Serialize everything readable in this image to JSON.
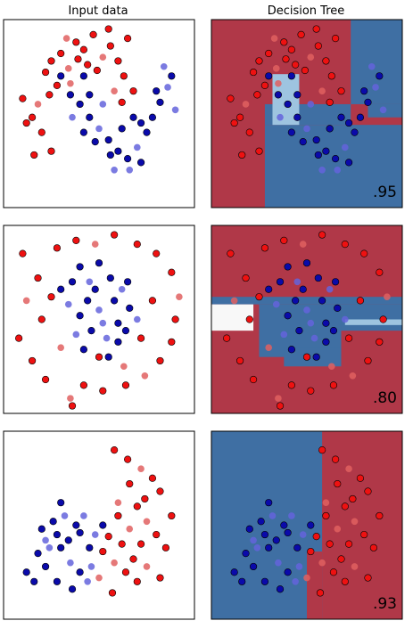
{
  "columns": [
    "Input data",
    "Decision Tree"
  ],
  "colors": {
    "red_point": "#ee1111",
    "red_point_test": "#e06060",
    "blue_point": "#0a0aaa",
    "blue_point_test": "#6464dc",
    "red_region": "#b03848",
    "blue_region": "#3f6fa3",
    "light_blue_region": "#9ec4e0",
    "white_region": "#f8f8f8"
  },
  "chart_data": [
    {
      "type": "scatter",
      "title": "Input data",
      "dataset": "moons",
      "xlim": [
        0,
        100
      ],
      "ylim": [
        0,
        100
      ],
      "grid": false,
      "points": [
        [
          22,
          72,
          "r",
          0
        ],
        [
          25,
          78,
          "r",
          0
        ],
        [
          30,
          82,
          "r",
          0
        ],
        [
          34,
          74,
          "r",
          1
        ],
        [
          38,
          88,
          "r",
          0
        ],
        [
          42,
          84,
          "r",
          0
        ],
        [
          47,
          92,
          "r",
          0
        ],
        [
          52,
          80,
          "r",
          1
        ],
        [
          56,
          86,
          "r",
          0
        ],
        [
          60,
          78,
          "r",
          0
        ],
        [
          63,
          70,
          "r",
          0
        ],
        [
          68,
          62,
          "r",
          0
        ],
        [
          18,
          55,
          "r",
          1
        ],
        [
          15,
          48,
          "r",
          0
        ],
        [
          24,
          60,
          "r",
          0
        ],
        [
          28,
          65,
          "r",
          0
        ],
        [
          10,
          58,
          "r",
          0
        ],
        [
          12,
          45,
          "r",
          0
        ],
        [
          20,
          40,
          "r",
          0
        ],
        [
          35,
          66,
          "r",
          1
        ],
        [
          55,
          95,
          "r",
          0
        ],
        [
          44,
          76,
          "r",
          0
        ],
        [
          58,
          62,
          "r",
          1
        ],
        [
          62,
          56,
          "r",
          0
        ],
        [
          65,
          90,
          "r",
          0
        ],
        [
          25,
          30,
          "r",
          0
        ],
        [
          33,
          90,
          "r",
          1
        ],
        [
          39,
          79,
          "r",
          0
        ],
        [
          49,
          73,
          "r",
          0
        ],
        [
          16,
          28,
          "r",
          0
        ],
        [
          30,
          70,
          "b",
          0
        ],
        [
          35,
          60,
          "b",
          0
        ],
        [
          40,
          55,
          "b",
          0
        ],
        [
          45,
          48,
          "b",
          0
        ],
        [
          50,
          42,
          "b",
          1
        ],
        [
          55,
          36,
          "b",
          0
        ],
        [
          60,
          30,
          "b",
          0
        ],
        [
          65,
          26,
          "b",
          0
        ],
        [
          70,
          32,
          "b",
          1
        ],
        [
          75,
          40,
          "b",
          0
        ],
        [
          78,
          48,
          "b",
          0
        ],
        [
          82,
          56,
          "b",
          0
        ],
        [
          86,
          64,
          "b",
          1
        ],
        [
          88,
          70,
          "b",
          0
        ],
        [
          36,
          48,
          "b",
          1
        ],
        [
          42,
          40,
          "b",
          0
        ],
        [
          48,
          35,
          "b",
          0
        ],
        [
          56,
          28,
          "b",
          0
        ],
        [
          66,
          20,
          "b",
          1
        ],
        [
          72,
          24,
          "b",
          0
        ],
        [
          45,
          60,
          "b",
          0
        ],
        [
          52,
          55,
          "b",
          1
        ],
        [
          80,
          62,
          "b",
          0
        ],
        [
          84,
          75,
          "b",
          1
        ],
        [
          72,
          45,
          "b",
          0
        ],
        [
          62,
          42,
          "b",
          0
        ],
        [
          42,
          70,
          "b",
          0
        ],
        [
          58,
          20,
          "b",
          1
        ],
        [
          68,
          48,
          "b",
          0
        ],
        [
          90,
          52,
          "b",
          1
        ]
      ]
    },
    {
      "type": "heatmap",
      "title": "Decision Tree",
      "dataset": "moons",
      "xlim": [
        0,
        100
      ],
      "ylim": [
        0,
        100
      ],
      "score": ".95",
      "regions": [
        {
          "x": [
            0,
            100
          ],
          "y": [
            0,
            100
          ],
          "class": "red"
        },
        {
          "x": [
            73,
            100
          ],
          "y": [
            55,
            100
          ],
          "class": "blue"
        },
        {
          "x": [
            28,
            100
          ],
          "y": [
            0,
            44
          ],
          "class": "blue"
        },
        {
          "x": [
            28,
            73
          ],
          "y": [
            44,
            55
          ],
          "class": "blue"
        },
        {
          "x": [
            32,
            46
          ],
          "y": [
            44,
            71
          ],
          "class": "light_blue"
        },
        {
          "x": [
            82,
            100
          ],
          "y": [
            48,
            55
          ],
          "class": "blue"
        }
      ]
    },
    {
      "type": "scatter",
      "title": "Input data",
      "dataset": "circles",
      "xlim": [
        0,
        100
      ],
      "ylim": [
        0,
        100
      ],
      "grid": false,
      "points": [
        [
          10,
          85,
          "r",
          0
        ],
        [
          18,
          72,
          "r",
          0
        ],
        [
          12,
          60,
          "r",
          1
        ],
        [
          8,
          40,
          "r",
          0
        ],
        [
          15,
          28,
          "r",
          0
        ],
        [
          22,
          18,
          "r",
          0
        ],
        [
          30,
          35,
          "r",
          1
        ],
        [
          28,
          88,
          "r",
          0
        ],
        [
          38,
          92,
          "r",
          0
        ],
        [
          48,
          90,
          "r",
          1
        ],
        [
          58,
          95,
          "r",
          0
        ],
        [
          70,
          90,
          "r",
          0
        ],
        [
          80,
          85,
          "r",
          0
        ],
        [
          88,
          75,
          "r",
          0
        ],
        [
          92,
          62,
          "r",
          1
        ],
        [
          90,
          50,
          "r",
          0
        ],
        [
          88,
          38,
          "r",
          0
        ],
        [
          82,
          28,
          "r",
          0
        ],
        [
          74,
          20,
          "r",
          1
        ],
        [
          64,
          15,
          "r",
          0
        ],
        [
          52,
          12,
          "r",
          0
        ],
        [
          42,
          15,
          "r",
          0
        ],
        [
          35,
          8,
          "r",
          1
        ],
        [
          36,
          4,
          "r",
          0
        ],
        [
          20,
          50,
          "r",
          0
        ],
        [
          25,
          62,
          "r",
          0
        ],
        [
          50,
          30,
          "r",
          0
        ],
        [
          63,
          25,
          "r",
          1
        ],
        [
          72,
          40,
          "r",
          0
        ],
        [
          78,
          60,
          "r",
          0
        ],
        [
          40,
          78,
          "b",
          0
        ],
        [
          45,
          70,
          "b",
          1
        ],
        [
          50,
          80,
          "b",
          0
        ],
        [
          56,
          72,
          "b",
          0
        ],
        [
          62,
          66,
          "b",
          1
        ],
        [
          66,
          56,
          "b",
          0
        ],
        [
          60,
          48,
          "b",
          0
        ],
        [
          54,
          40,
          "b",
          1
        ],
        [
          46,
          44,
          "b",
          0
        ],
        [
          40,
          52,
          "b",
          0
        ],
        [
          34,
          58,
          "b",
          1
        ],
        [
          30,
          66,
          "b",
          0
        ],
        [
          44,
          60,
          "b",
          0
        ],
        [
          50,
          55,
          "b",
          1
        ],
        [
          58,
          60,
          "b",
          0
        ],
        [
          65,
          70,
          "b",
          0
        ],
        [
          38,
          42,
          "b",
          1
        ],
        [
          55,
          30,
          "b",
          0
        ],
        [
          48,
          66,
          "b",
          0
        ],
        [
          70,
          50,
          "b",
          1
        ],
        [
          36,
          70,
          "b",
          0
        ],
        [
          60,
          38,
          "b",
          0
        ],
        [
          52,
          48,
          "b",
          1
        ],
        [
          42,
          34,
          "b",
          0
        ],
        [
          64,
          44,
          "b",
          0
        ]
      ]
    },
    {
      "type": "heatmap",
      "title": "Decision Tree",
      "dataset": "circles",
      "xlim": [
        0,
        100
      ],
      "ylim": [
        0,
        100
      ],
      "score": ".80",
      "regions": [
        {
          "x": [
            0,
            100
          ],
          "y": [
            0,
            100
          ],
          "class": "red"
        },
        {
          "x": [
            0,
            100
          ],
          "y": [
            58,
            62
          ],
          "class": "blue"
        },
        {
          "x": [
            0,
            22
          ],
          "y": [
            44,
            58
          ],
          "class": "white"
        },
        {
          "x": [
            25,
            68
          ],
          "y": [
            30,
            58
          ],
          "class": "blue"
        },
        {
          "x": [
            38,
            68
          ],
          "y": [
            25,
            35
          ],
          "class": "blue"
        },
        {
          "x": [
            68,
            100
          ],
          "y": [
            44,
            58
          ],
          "class": "blue"
        },
        {
          "x": [
            70,
            100
          ],
          "y": [
            47,
            50
          ],
          "class": "light_blue"
        }
      ]
    },
    {
      "type": "scatter",
      "title": "Input data",
      "dataset": "linearly separable",
      "xlim": [
        0,
        100
      ],
      "ylim": [
        0,
        100
      ],
      "grid": false,
      "points": [
        [
          58,
          90,
          "r",
          0
        ],
        [
          65,
          85,
          "r",
          0
        ],
        [
          72,
          80,
          "r",
          1
        ],
        [
          78,
          75,
          "r",
          0
        ],
        [
          82,
          68,
          "r",
          0
        ],
        [
          70,
          60,
          "r",
          0
        ],
        [
          75,
          52,
          "r",
          1
        ],
        [
          80,
          45,
          "r",
          0
        ],
        [
          85,
          38,
          "r",
          0
        ],
        [
          72,
          40,
          "r",
          0
        ],
        [
          66,
          48,
          "r",
          1
        ],
        [
          60,
          55,
          "r",
          0
        ],
        [
          62,
          40,
          "r",
          0
        ],
        [
          68,
          32,
          "r",
          0
        ],
        [
          75,
          28,
          "r",
          1
        ],
        [
          82,
          22,
          "r",
          0
        ],
        [
          70,
          20,
          "r",
          0
        ],
        [
          64,
          25,
          "r",
          0
        ],
        [
          58,
          30,
          "r",
          1
        ],
        [
          55,
          44,
          "r",
          0
        ],
        [
          88,
          55,
          "r",
          0
        ],
        [
          60,
          62,
          "r",
          1
        ],
        [
          66,
          72,
          "r",
          0
        ],
        [
          74,
          64,
          "r",
          0
        ],
        [
          52,
          36,
          "r",
          0
        ],
        [
          50,
          22,
          "r",
          1
        ],
        [
          57,
          14,
          "r",
          0
        ],
        [
          12,
          25,
          "b",
          0
        ],
        [
          18,
          35,
          "b",
          0
        ],
        [
          22,
          42,
          "b",
          1
        ],
        [
          28,
          45,
          "b",
          0
        ],
        [
          30,
          38,
          "b",
          0
        ],
        [
          35,
          30,
          "b",
          1
        ],
        [
          40,
          25,
          "b",
          0
        ],
        [
          45,
          38,
          "b",
          0
        ],
        [
          48,
          45,
          "b",
          1
        ],
        [
          52,
          50,
          "b",
          0
        ],
        [
          38,
          50,
          "b",
          0
        ],
        [
          32,
          55,
          "b",
          1
        ],
        [
          26,
          52,
          "b",
          0
        ],
        [
          20,
          48,
          "b",
          0
        ],
        [
          44,
          20,
          "b",
          1
        ],
        [
          36,
          16,
          "b",
          0
        ],
        [
          28,
          20,
          "b",
          0
        ],
        [
          42,
          55,
          "b",
          1
        ],
        [
          30,
          62,
          "b",
          0
        ],
        [
          34,
          42,
          "b",
          0
        ],
        [
          24,
          38,
          "b",
          1
        ],
        [
          16,
          20,
          "b",
          0
        ],
        [
          40,
          46,
          "b",
          0
        ],
        [
          46,
          28,
          "b",
          1
        ],
        [
          22,
          28,
          "b",
          0
        ]
      ]
    },
    {
      "type": "heatmap",
      "title": "Decision Tree",
      "dataset": "linearly separable",
      "xlim": [
        0,
        100
      ],
      "ylim": [
        0,
        100
      ],
      "score": ".93",
      "regions": [
        {
          "x": [
            0,
            100
          ],
          "y": [
            0,
            100
          ],
          "class": "blue"
        },
        {
          "x": [
            58,
            100
          ],
          "y": [
            0,
            100
          ],
          "class": "red"
        },
        {
          "x": [
            50,
            58
          ],
          "y": [
            0,
            36
          ],
          "class": "red"
        }
      ]
    }
  ]
}
